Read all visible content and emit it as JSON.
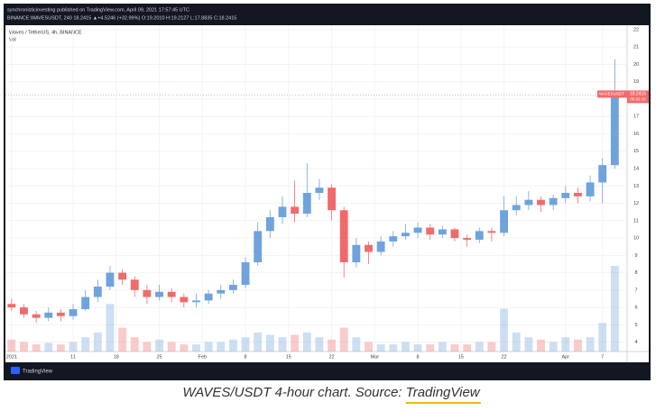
{
  "header": {
    "publisher": "synchronisticinvesting published on TradingView.com, April 09, 2021 17:57:45 UTC",
    "symbol_line": "BINANCE:WAVESUSDT, 240  18.2415  ▲+4.5246 (+32.99%)  O:19.2010  H:19.2127  L:17.8835  C:18.2415"
  },
  "chart_data": {
    "type": "candlestick",
    "legend_title": "Waves / TetherUS, 4h, BINANCE",
    "volume_label": "Vol",
    "symbol_tag": "WAVESUSDT",
    "countdown": "05:02:15",
    "up_color": "#6fa3dc",
    "down_color": "#ef6b6b",
    "x": [
      1,
      3,
      5,
      7,
      9,
      11,
      13,
      15,
      17,
      19,
      21,
      23,
      25,
      27,
      29,
      31,
      33,
      35,
      37,
      39,
      41,
      43,
      45,
      47,
      49,
      51,
      53,
      55,
      57,
      59,
      61,
      63,
      65,
      67,
      69,
      71,
      73,
      75,
      77,
      79,
      81,
      83,
      85,
      87,
      89,
      91,
      93,
      95,
      97,
      99
    ],
    "open": [
      6.2,
      6.0,
      5.6,
      5.4,
      5.7,
      5.5,
      5.9,
      6.6,
      7.2,
      8.0,
      7.6,
      7.0,
      6.6,
      6.9,
      6.6,
      6.3,
      6.4,
      6.8,
      7.0,
      7.3,
      8.6,
      10.4,
      11.2,
      11.8,
      11.4,
      12.6,
      12.9,
      11.6,
      8.6,
      9.6,
      9.2,
      9.8,
      10.1,
      10.3,
      10.6,
      10.2,
      10.5,
      10.0,
      9.9,
      10.4,
      10.3,
      11.6,
      11.9,
      12.2,
      11.9,
      12.3,
      12.6,
      12.4,
      13.2,
      14.2
    ],
    "high": [
      6.5,
      6.2,
      5.8,
      6.0,
      5.9,
      6.2,
      7.0,
      7.6,
      8.4,
      8.2,
      7.8,
      7.3,
      7.3,
      7.1,
      6.8,
      6.8,
      7.0,
      7.3,
      7.6,
      8.9,
      10.9,
      11.6,
      12.4,
      13.3,
      14.3,
      13.4,
      13.1,
      11.8,
      10.0,
      9.8,
      10.1,
      10.4,
      10.8,
      10.9,
      10.8,
      10.7,
      10.6,
      10.2,
      10.6,
      10.6,
      12.4,
      12.4,
      12.7,
      12.4,
      12.5,
      13.0,
      12.9,
      13.6,
      14.6,
      20.3
    ],
    "low": [
      5.8,
      5.4,
      5.1,
      5.2,
      5.2,
      5.3,
      5.8,
      6.3,
      7.0,
      7.3,
      6.6,
      6.2,
      6.4,
      6.3,
      6.0,
      6.0,
      6.2,
      6.5,
      6.8,
      7.1,
      8.4,
      10.0,
      10.8,
      10.9,
      11.2,
      12.2,
      11.0,
      7.7,
      8.3,
      8.5,
      9.0,
      9.5,
      9.9,
      10.0,
      9.9,
      10.0,
      9.8,
      9.5,
      9.7,
      9.8,
      10.1,
      11.3,
      11.6,
      11.5,
      11.6,
      12.0,
      12.0,
      12.1,
      12.0,
      14.0
    ],
    "close": [
      6.0,
      5.6,
      5.4,
      5.7,
      5.5,
      5.9,
      6.6,
      7.2,
      8.0,
      7.6,
      7.0,
      6.6,
      6.9,
      6.6,
      6.3,
      6.4,
      6.8,
      7.0,
      7.3,
      8.6,
      10.4,
      11.2,
      11.8,
      11.4,
      12.6,
      12.9,
      11.6,
      8.6,
      9.6,
      9.2,
      9.8,
      10.1,
      10.3,
      10.6,
      10.2,
      10.5,
      10.0,
      9.9,
      10.4,
      10.3,
      11.6,
      11.9,
      12.2,
      11.9,
      12.3,
      12.6,
      12.4,
      13.2,
      14.2,
      18.2415
    ],
    "volume": [
      2.5,
      2,
      1.5,
      1.8,
      1.5,
      2,
      3,
      4,
      10,
      5,
      3,
      2,
      2.5,
      2,
      1.5,
      1.5,
      2,
      2,
      2.5,
      3,
      4,
      3.5,
      3,
      3.5,
      4,
      3,
      2.5,
      5,
      3,
      2,
      1.5,
      1.5,
      2,
      1.5,
      1.5,
      2,
      1.5,
      1.5,
      2,
      2,
      9,
      4,
      3,
      2.5,
      2,
      3,
      2.5,
      3,
      6,
      18
    ],
    "xlim": [
      0,
      101
    ],
    "xticks": [
      {
        "value": 1,
        "label": "2021"
      },
      11,
      18,
      25,
      {
        "value": 32,
        "label": "Feb"
      },
      {
        "value": 39,
        "label": "8"
      },
      {
        "value": 46,
        "label": "15"
      },
      {
        "value": 53,
        "label": "22"
      },
      {
        "value": 60,
        "label": "Mar"
      },
      {
        "value": 67,
        "label": "8"
      },
      {
        "value": 74,
        "label": "15"
      },
      {
        "value": 81,
        "label": "22"
      },
      {
        "value": 91,
        "label": "Apr"
      },
      {
        "value": 97,
        "label": "7"
      }
    ],
    "ylim": [
      2.94,
      22.26
    ],
    "yticks": [
      4,
      5,
      6,
      7,
      8,
      9,
      10,
      11,
      12,
      13,
      14,
      15,
      16,
      17,
      18,
      19,
      20,
      21,
      22
    ],
    "grid": true
  },
  "branding": "TradingView",
  "caption": {
    "text": "WAVES/USDT 4-hour chart. Source: ",
    "link": "TradingView"
  }
}
